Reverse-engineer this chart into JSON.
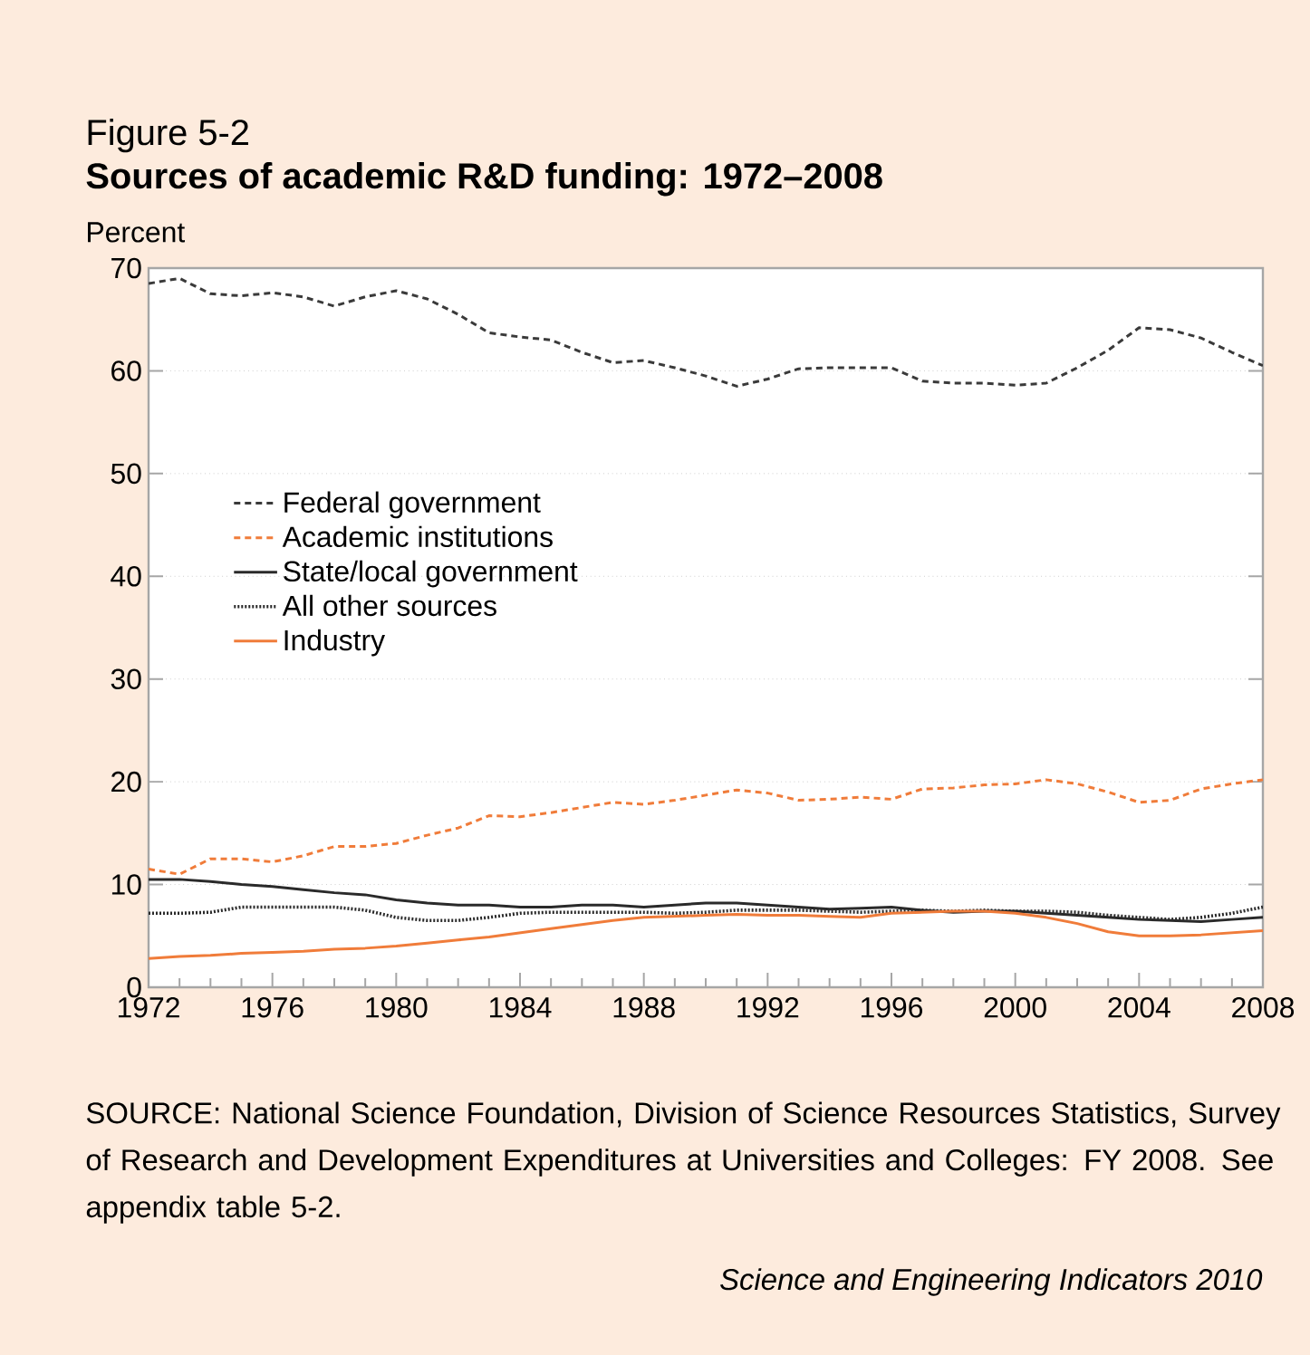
{
  "chart_data": {
    "type": "line",
    "title": "Figure 5-2",
    "subtitle": "Sources of academic R&D funding: 1972–2008",
    "ylabel": "Percent",
    "x": [
      1972,
      1973,
      1974,
      1975,
      1976,
      1977,
      1978,
      1979,
      1980,
      1981,
      1982,
      1983,
      1984,
      1985,
      1986,
      1987,
      1988,
      1989,
      1990,
      1991,
      1992,
      1993,
      1994,
      1995,
      1996,
      1997,
      1998,
      1999,
      2000,
      2001,
      2002,
      2003,
      2004,
      2005,
      2006,
      2007,
      2008
    ],
    "series": [
      {
        "name": "Federal government",
        "color": "#3a3a3a",
        "line_style": "dashed",
        "values": [
          68.5,
          69,
          67.5,
          67.3,
          67.6,
          67.2,
          66.3,
          67.2,
          67.8,
          67,
          65.5,
          63.7,
          63.3,
          63,
          61.8,
          60.8,
          61,
          60.3,
          59.5,
          58.5,
          59.2,
          60.2,
          60.3,
          60.3,
          60.3,
          59,
          58.8,
          58.8,
          58.6,
          58.8,
          60.3,
          62,
          64.2,
          64,
          63.2,
          61.8,
          60.5
        ]
      },
      {
        "name": "Academic institutions",
        "color": "#f07c3a",
        "line_style": "dashed",
        "values": [
          11.5,
          11,
          12.5,
          12.5,
          12.2,
          12.8,
          13.7,
          13.7,
          14,
          14.8,
          15.5,
          16.7,
          16.6,
          17,
          17.5,
          18,
          17.8,
          18.2,
          18.7,
          19.2,
          18.9,
          18.2,
          18.3,
          18.5,
          18.3,
          19.3,
          19.4,
          19.7,
          19.8,
          20.2,
          19.8,
          19,
          18,
          18.2,
          19.3,
          19.8,
          20.2
        ]
      },
      {
        "name": "State/local government",
        "color": "#2a2a2a",
        "line_style": "solid",
        "values": [
          10.5,
          10.5,
          10.3,
          10,
          9.8,
          9.5,
          9.2,
          9,
          8.5,
          8.2,
          8,
          8,
          7.8,
          7.8,
          8,
          8,
          7.8,
          8,
          8.2,
          8.2,
          8,
          7.8,
          7.6,
          7.7,
          7.8,
          7.5,
          7.3,
          7.4,
          7.4,
          7.2,
          7,
          6.8,
          6.6,
          6.5,
          6.4,
          6.6,
          6.8
        ]
      },
      {
        "name": "All other sources",
        "color": "#2a2a2a",
        "line_style": "dotted",
        "values": [
          7.2,
          7.2,
          7.3,
          7.8,
          7.8,
          7.8,
          7.8,
          7.5,
          6.8,
          6.5,
          6.5,
          6.8,
          7.2,
          7.3,
          7.3,
          7.3,
          7.3,
          7.2,
          7.3,
          7.5,
          7.5,
          7.5,
          7.4,
          7.3,
          7.4,
          7.5,
          7.4,
          7.5,
          7.4,
          7.4,
          7.3,
          7,
          6.8,
          6.6,
          6.8,
          7.2,
          7.8
        ]
      },
      {
        "name": "Industry",
        "color": "#f07c3a",
        "line_style": "solid",
        "values": [
          2.8,
          3,
          3.1,
          3.3,
          3.4,
          3.5,
          3.7,
          3.8,
          4,
          4.3,
          4.6,
          4.9,
          5.3,
          5.7,
          6.1,
          6.5,
          6.8,
          6.9,
          7,
          7.1,
          7,
          7,
          6.9,
          6.8,
          7.2,
          7.3,
          7.4,
          7.4,
          7.2,
          6.8,
          6.2,
          5.4,
          5,
          5,
          5.1,
          5.3,
          5.5
        ]
      }
    ],
    "xlim": [
      1972,
      2008
    ],
    "xticks": [
      1972,
      1976,
      1980,
      1984,
      1988,
      1992,
      1996,
      2000,
      2004,
      2008
    ],
    "ylim": [
      0,
      70
    ],
    "yticks": [
      0,
      10,
      20,
      30,
      40,
      50,
      60,
      70
    ],
    "grid": "y",
    "legend": "left",
    "marker": "none",
    "annotations": [
      "SOURCE: National Science Foundation, Division of Science Resources Statistics, Survey of Research and Development Expenditures at Universities and Colleges: FY 2008. See appendix table 5-2.",
      "Science and Engineering Indicators 2010"
    ]
  }
}
